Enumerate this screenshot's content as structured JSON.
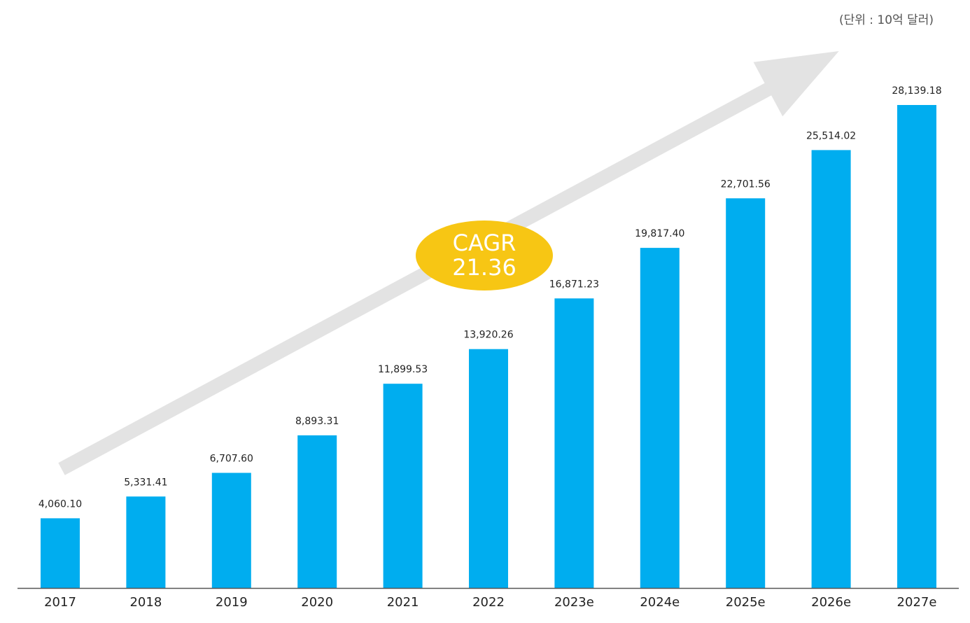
{
  "unit_note": "(단위 : 10억 달러)",
  "cagr": {
    "label": "CAGR",
    "value": "21.36"
  },
  "colors": {
    "bar": "#00adef",
    "arrow": "#e3e3e3",
    "badge": "#f7c614",
    "axis": "#555555",
    "text": "#222222"
  },
  "chart_data": {
    "type": "bar",
    "categories": [
      "2017",
      "2018",
      "2019",
      "2020",
      "2021",
      "2022",
      "2023e",
      "2024e",
      "2025e",
      "2026e",
      "2027e"
    ],
    "values": [
      4060.1,
      5331.41,
      6707.6,
      8893.31,
      11899.53,
      13920.26,
      16871.23,
      19817.4,
      22701.56,
      25514.02,
      28139.18
    ],
    "value_labels": [
      "4,060.10",
      "5,331.41",
      "6,707.60",
      "8,893.31",
      "11,899.53",
      "13,920.26",
      "16,871.23",
      "19,817.40",
      "22,701.56",
      "25,514.02",
      "28,139.18"
    ],
    "ylim": [
      0,
      28139.18
    ],
    "grid": false,
    "legend": "none"
  }
}
